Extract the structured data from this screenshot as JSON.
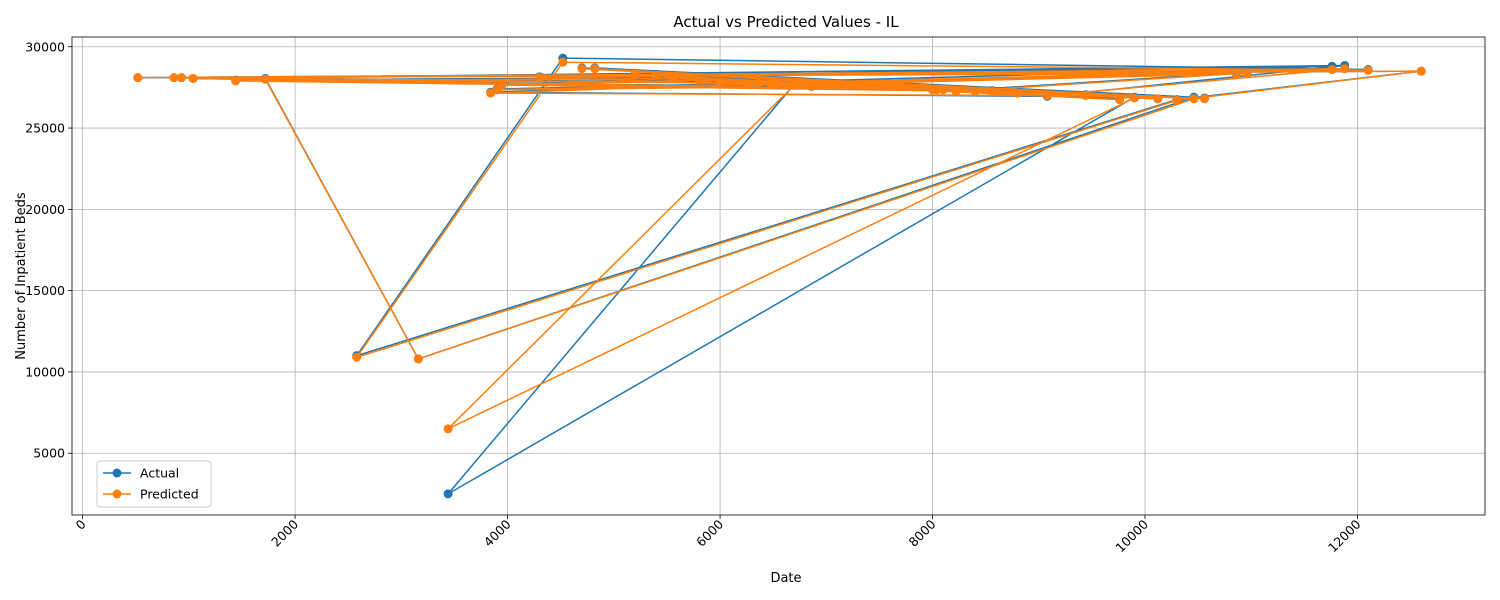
{
  "chart_data": {
    "type": "line",
    "title": "Actual vs Predicted Values - IL",
    "xlabel": "Date",
    "ylabel": "Number of Inpatient Beds",
    "xlim": [
      -100,
      13200
    ],
    "ylim": [
      1200,
      30600
    ],
    "xticks": [
      0,
      2000,
      4000,
      6000,
      8000,
      10000,
      12000
    ],
    "xtick_labels": [
      "0",
      "2000",
      "4000",
      "6000",
      "8000",
      "10000",
      "12000"
    ],
    "yticks": [
      5000,
      10000,
      15000,
      20000,
      25000,
      30000
    ],
    "ytick_labels": [
      "5000",
      "10000",
      "15000",
      "20000",
      "25000",
      "30000"
    ],
    "grid": true,
    "legend_position": "lower-left",
    "series": [
      {
        "name": "Actual",
        "color": "#1f77b4",
        "x": [
          520,
          860,
          930,
          1040,
          1440,
          1720,
          2580,
          3160,
          3440,
          3840,
          3900,
          3950,
          4300,
          4520,
          4700,
          4820,
          5200,
          5400,
          5560,
          5800,
          6000,
          6360,
          6480,
          6540,
          6700,
          6860,
          8000,
          8040,
          8100,
          8220,
          8400,
          8560,
          8800,
          9080,
          9440,
          9760,
          9900,
          10120,
          10300,
          10460,
          10560,
          10860,
          10960,
          11760,
          11880,
          12100,
          12600
        ],
        "y": [
          28100,
          28100,
          28100,
          28050,
          27950,
          28050,
          11000,
          10800,
          2500,
          27200,
          27400,
          27700,
          28150,
          29300,
          28700,
          28700,
          28300,
          28300,
          28100,
          28000,
          27900,
          27800,
          27800,
          27800,
          27700,
          27600,
          27400,
          27400,
          27400,
          27300,
          27300,
          27300,
          27200,
          26950,
          27050,
          26800,
          26900,
          26800,
          26750,
          26900,
          26850,
          28400,
          28400,
          28800,
          28850,
          28600,
          28500
        ]
      },
      {
        "name": "Predicted",
        "color": "#ff7f0e",
        "x": [
          520,
          860,
          930,
          1040,
          1440,
          1720,
          2580,
          3160,
          3440,
          3840,
          3900,
          3950,
          4300,
          4520,
          4700,
          4820,
          5200,
          5400,
          5560,
          5800,
          6000,
          6360,
          6480,
          6540,
          6700,
          6860,
          8000,
          8040,
          8100,
          8220,
          8400,
          8560,
          8800,
          9080,
          9440,
          9760,
          9900,
          10120,
          10300,
          10460,
          10560,
          10860,
          10960,
          11760,
          11880,
          12100,
          12600
        ],
        "y": [
          28100,
          28100,
          28100,
          28050,
          27900,
          28000,
          10900,
          10800,
          6500,
          27150,
          27350,
          27650,
          28100,
          29050,
          28650,
          28650,
          28250,
          28250,
          28050,
          27950,
          27850,
          27750,
          27750,
          27750,
          27650,
          27550,
          27350,
          27350,
          27350,
          27250,
          27250,
          27250,
          27150,
          27000,
          27000,
          26750,
          26850,
          26800,
          26700,
          26800,
          26800,
          28350,
          28350,
          28600,
          28650,
          28550,
          28500
        ]
      }
    ],
    "order": [
      0,
      45,
      13,
      6,
      38,
      46,
      2,
      22,
      9,
      33,
      44,
      3,
      28,
      15,
      40,
      19,
      11,
      31,
      1,
      42,
      24,
      8,
      36,
      27,
      4,
      18,
      30,
      12,
      43,
      21,
      5,
      7,
      39,
      14,
      34,
      25,
      10,
      41,
      29,
      17,
      35,
      23,
      16,
      32,
      20,
      37,
      26
    ]
  }
}
